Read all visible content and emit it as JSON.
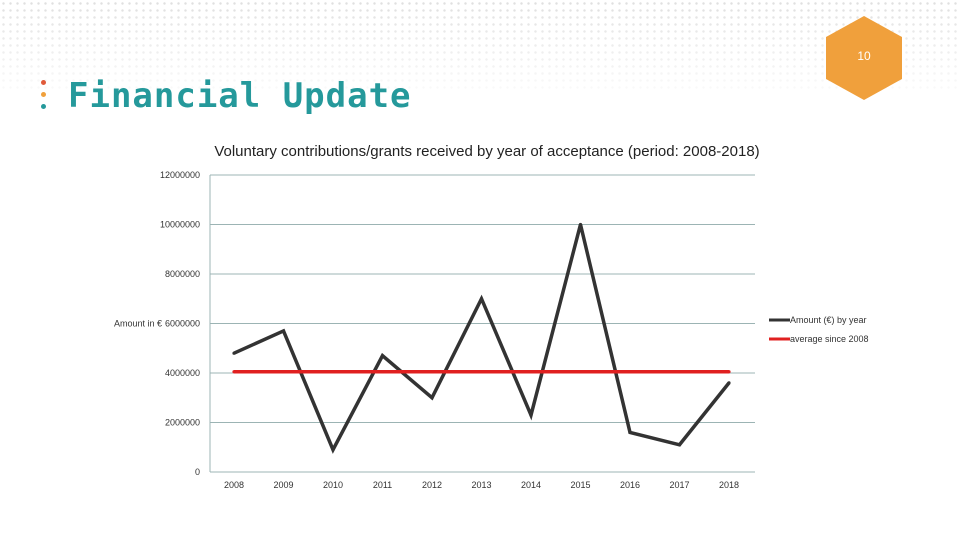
{
  "slide": {
    "page_number": "10",
    "title": "Financial Update",
    "colors": {
      "title": "#25999b",
      "badge": "#f0a03c",
      "marker_dots": [
        "#e05a3a",
        "#f0a03c",
        "#25999b"
      ]
    }
  },
  "chart_data": {
    "type": "line",
    "title": "Voluntary contributions/grants received by year of acceptance (period: 2008-2018)",
    "ylabel": "Amount in €",
    "xlabel": "",
    "categories": [
      "2008",
      "2009",
      "2010",
      "2011",
      "2012",
      "2013",
      "2014",
      "2015",
      "2016",
      "2017",
      "2018"
    ],
    "y_ticks": [
      "0",
      "2000000",
      "4000000",
      "6000000",
      "8000000",
      "10000000",
      "12000000"
    ],
    "ylim": [
      0,
      12000000
    ],
    "grid": true,
    "legend_position": "right",
    "series": [
      {
        "name": "Amount (€) by year",
        "color": "#333333",
        "values": [
          4800000,
          5700000,
          900000,
          4700000,
          3000000,
          7000000,
          2300000,
          10000000,
          1600000,
          1100000,
          3600000
        ]
      },
      {
        "name": "average since 2008",
        "color": "#e02020",
        "values": [
          4050000,
          4050000,
          4050000,
          4050000,
          4050000,
          4050000,
          4050000,
          4050000,
          4050000,
          4050000,
          4050000
        ]
      }
    ]
  }
}
